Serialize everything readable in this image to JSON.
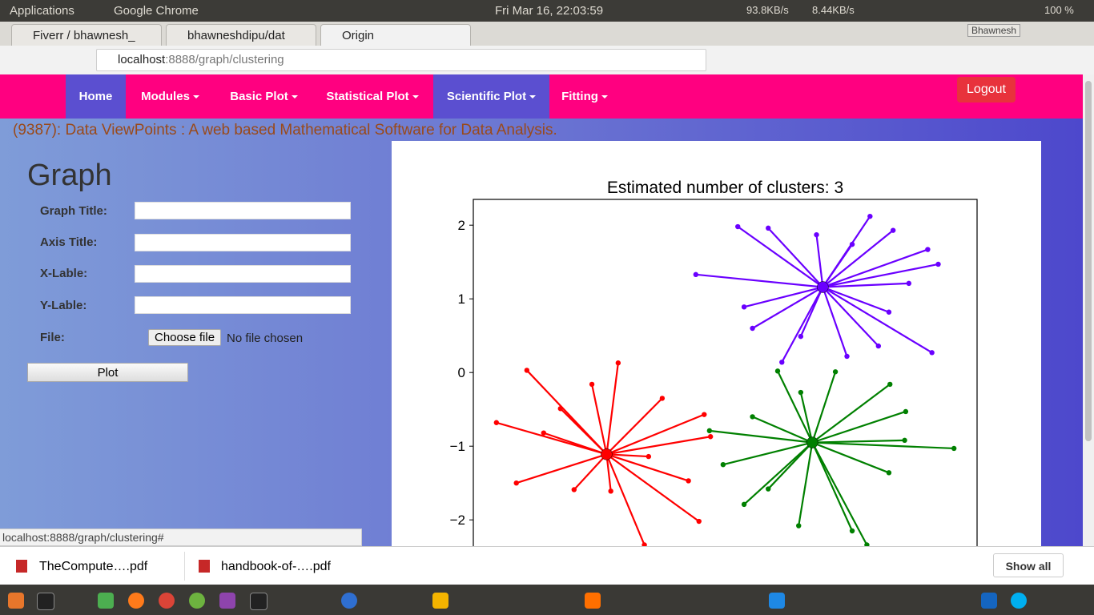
{
  "system_bar": {
    "menu": "Applications",
    "app": "Google Chrome",
    "clock": "Fri Mar 16, 22:03:59",
    "net_down": "93.8KB/s",
    "net_up": "8.44KB/s",
    "battery": "100 %"
  },
  "tabs": [
    "Fiverr / bhawnesh_",
    "bhawneshdipu/dat",
    "Origin"
  ],
  "user": "Bhawnesh",
  "address": {
    "host": "localhost",
    "path": ":8888/graph/clustering"
  },
  "nav": {
    "items": [
      "Home",
      "Modules",
      "Basic Plot",
      "Statistical Plot",
      "Scientific Plot",
      "Fitting"
    ],
    "logout": "Logout"
  },
  "banner": "(9387): Data ViewPoints : A web based Mathematical Software for Data Analysis.",
  "form": {
    "heading": "Graph",
    "fields": [
      "Graph Title:",
      "Axis Title:",
      "X-Lable:",
      "Y-Lable:"
    ],
    "file_label": "File:",
    "file_button": "Choose file",
    "file_status": "No file chosen",
    "submit": "Plot"
  },
  "chart_data": {
    "type": "scatter",
    "title": "Estimated number of clusters: 3",
    "xlim": [
      -2.27,
      2.53
    ],
    "ylim": [
      -2.6,
      2.35
    ],
    "yticks": [
      {
        "value": 2,
        "label": "2"
      },
      {
        "value": 1,
        "label": "1"
      },
      {
        "value": 0,
        "label": "0"
      },
      {
        "value": -1,
        "label": "−1"
      },
      {
        "value": -2,
        "label": "−2"
      }
    ],
    "series": [
      {
        "color": "#6a00ff",
        "center": {
          "x": 1.06,
          "y": 1.16
        },
        "x": [
          0.25,
          1.51,
          1.73,
          2.06,
          2.16,
          -0.15,
          1.88,
          2.1,
          0.67,
          1.29,
          1.59,
          1.0,
          0.54,
          0.31,
          0.39,
          0.85,
          1.69,
          1.34
        ],
        "y": [
          1.98,
          2.12,
          1.93,
          1.67,
          1.47,
          1.33,
          1.21,
          0.27,
          0.14,
          0.22,
          0.36,
          1.87,
          1.96,
          0.89,
          0.6,
          0.49,
          0.82,
          1.74
        ]
      },
      {
        "color": "#ff0000",
        "center": {
          "x": -1.0,
          "y": -1.11
        },
        "x": [
          -1.76,
          -0.89,
          -2.05,
          -1.86,
          -0.12,
          -0.64,
          -0.01,
          -0.07,
          -0.47,
          -1.31,
          -0.96,
          -1.6,
          -1.44,
          -0.22,
          -1.14,
          -0.6
        ],
        "y": [
          0.03,
          0.13,
          -0.68,
          -1.5,
          -2.02,
          -2.34,
          -0.87,
          -0.57,
          -0.35,
          -1.59,
          -1.61,
          -0.82,
          -0.49,
          -1.47,
          -0.16,
          -1.14
        ]
      },
      {
        "color": "#008000",
        "center": {
          "x": 0.96,
          "y": -0.95
        },
        "x": [
          1.18,
          0.63,
          2.31,
          1.85,
          1.7,
          -0.02,
          0.11,
          0.83,
          1.48,
          1.34,
          0.31,
          1.69,
          1.84,
          0.39,
          0.85,
          0.54
        ],
        "y": [
          0.01,
          0.02,
          -1.03,
          -0.53,
          -0.16,
          -0.79,
          -1.25,
          -2.08,
          -2.34,
          -2.15,
          -1.79,
          -1.36,
          -0.92,
          -0.6,
          -0.27,
          -1.58
        ]
      }
    ]
  },
  "status_url": "localhost:8888/graph/clustering#",
  "downloads": {
    "files": [
      "TheCompute….pdf",
      "handbook-of-….pdf"
    ],
    "show_all": "Show all"
  }
}
